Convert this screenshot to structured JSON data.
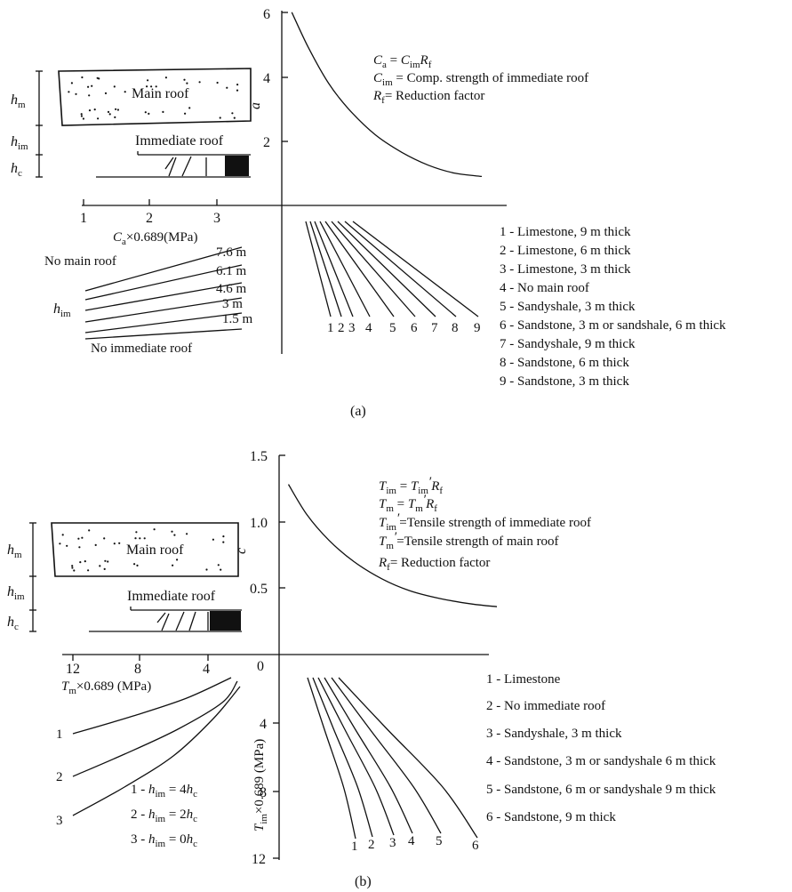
{
  "chart_data": [
    {
      "panel_label": "(a)",
      "type": "line",
      "quadrant_I": {
        "ylabel": "a",
        "yticks": [
          "2",
          "4",
          "6"
        ],
        "ylim": [
          0,
          6
        ],
        "curve": {
          "x": [
            0.3,
            0.8,
            1.4,
            2.0,
            2.8,
            3.6,
            4.4,
            5.2,
            6.0
          ],
          "y": [
            6.0,
            4.9,
            3.8,
            3.0,
            2.2,
            1.65,
            1.25,
            1.0,
            0.9
          ]
        },
        "equations": [
          {
            "sym": "C",
            "sub": "a",
            "rest": " = ",
            "sym2": "C",
            "sub2": "im",
            "sym3": "R",
            "sub3": "f",
            "tail": ""
          },
          {
            "sym": "C",
            "sub": "im",
            "rest": " = Comp. strength of immediate roof"
          },
          {
            "sym": "R",
            "sub": "f",
            "rest": "= Reduction factor"
          }
        ]
      },
      "quadrant_II": {
        "xlabel_sym": "C",
        "xlabel_sub": "a",
        "xlabel_rest": "×0.689(MPa)",
        "xticks": [
          "1",
          "2",
          "3"
        ],
        "diagram": {
          "main_roof": "Main roof",
          "immediate_roof": "Immediate roof",
          "h_m": {
            "sym": "h",
            "sub": "m"
          },
          "h_im": {
            "sym": "h",
            "sub": "im"
          },
          "h_c": {
            "sym": "h",
            "sub": "c"
          }
        }
      },
      "quadrant_III": {
        "title_top": "No main roof",
        "title_bottom": "No immediate roof",
        "axis_label": {
          "sym": "h",
          "sub": "im"
        },
        "line_labels": [
          "7.6 m",
          "6.1 m",
          "4.6 m",
          "3 m",
          "1.5 m"
        ]
      },
      "quadrant_IV": {
        "line_numbers": [
          "1",
          "2",
          "3",
          "4",
          "5",
          "6",
          "7",
          "8",
          "9"
        ],
        "legend": [
          "1 - Limestone, 9 m thick",
          "2 - Limestone, 6 m thick",
          "3 - Limestone, 3 m thick",
          "4 - No main roof",
          "5 - Sandyshale, 3 m thick",
          "6 - Sandstone, 3 m or sandshale, 6 m thick",
          "7 - Sandyshale, 9 m thick",
          "8 - Sandstone, 6 m thick",
          "9 - Sandstone, 3 m thick"
        ]
      }
    },
    {
      "panel_label": "(b)",
      "type": "line",
      "quadrant_I": {
        "ylabel": "c",
        "yticks": [
          "0.5",
          "1.0",
          "1.5"
        ],
        "ylim": [
          0,
          1.5
        ],
        "curve": {
          "x": [
            0.3,
            0.9,
            1.6,
            2.4,
            3.3,
            4.2,
            5.2,
            6.2,
            7.0
          ],
          "y": [
            1.28,
            1.05,
            0.86,
            0.7,
            0.57,
            0.48,
            0.42,
            0.38,
            0.36
          ]
        },
        "equations": [
          {
            "sym": "T",
            "sub": "im",
            "rest": " = ",
            "sym2": "T",
            "sub2": "im",
            "prime2": "′",
            "sym3": "R",
            "sub3": "f"
          },
          {
            "sym": "T",
            "sub": "m",
            "rest": " = ",
            "sym2": "T",
            "sub2": "m",
            "prime2": "′",
            "sym3": "R",
            "sub3": "f"
          },
          {
            "sym": "T",
            "sub": "im",
            "prime": "′",
            "rest": "=Tensile strength of immediate roof"
          },
          {
            "sym": "T",
            "sub": "m",
            "prime": "′",
            "rest": "=Tensile strength of main roof"
          },
          {
            "sym": "R",
            "sub": "f",
            "rest": "= Reduction factor"
          }
        ]
      },
      "quadrant_II": {
        "xlabel_sym": "T",
        "xlabel_sub": "m",
        "xlabel_rest": "×0.689 (MPa)",
        "xticks": [
          "12",
          "8",
          "4",
          "0"
        ],
        "diagram": {
          "main_roof": "Main roof",
          "immediate_roof": "Immediate roof",
          "h_m": {
            "sym": "h",
            "sub": "m"
          },
          "h_im": {
            "sym": "h",
            "sub": "im"
          },
          "h_c": {
            "sym": "h",
            "sub": "c"
          }
        }
      },
      "quadrant_III": {
        "line_numbers": [
          "1",
          "2",
          "3"
        ],
        "legend": [
          {
            "num": "1 - ",
            "sym": "h",
            "sub": "im",
            "rest": " = 4",
            "sym2": "h",
            "sub2": "c"
          },
          {
            "num": "2 - ",
            "sym": "h",
            "sub": "im",
            "rest": " = 2",
            "sym2": "h",
            "sub2": "c"
          },
          {
            "num": "3 - ",
            "sym": "h",
            "sub": "im",
            "rest": " = 0",
            "sym2": "h",
            "sub2": "c"
          }
        ]
      },
      "quadrant_IV": {
        "ylabel_sym": "T",
        "ylabel_sub": "im",
        "ylabel_rest": "×0.689 (MPa)",
        "yticks": [
          "4",
          "8",
          "12"
        ],
        "line_numbers": [
          "1",
          "2",
          "3",
          "4",
          "5",
          "6"
        ],
        "legend": [
          "1 - Limestone",
          "2 - No immediate roof",
          "3 - Sandyshale, 3 m thick",
          "4 - Sandstone, 3 m or sandyshale 6 m thick",
          "5 - Sandstone, 6 m or sandyshale 9 m thick",
          "6 - Sandstone, 9 m thick"
        ]
      }
    }
  ]
}
